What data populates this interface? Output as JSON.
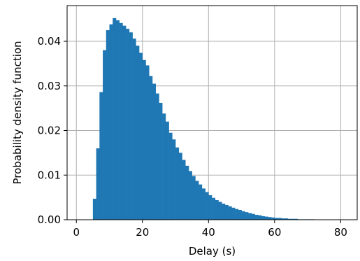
{
  "chart_data": {
    "type": "bar",
    "title": "",
    "xlabel": "Delay (s)",
    "ylabel": "Probability density function",
    "xlim": [
      -2.8,
      85
    ],
    "ylim": [
      0,
      0.048
    ],
    "x_ticks": [
      0,
      20,
      40,
      60,
      80
    ],
    "x_tick_labels": [
      "0",
      "20",
      "40",
      "60",
      "80"
    ],
    "y_ticks": [
      0.0,
      0.01,
      0.02,
      0.03,
      0.04
    ],
    "y_tick_labels": [
      "0.00",
      "0.01",
      "0.02",
      "0.03",
      "0.04"
    ],
    "grid": true,
    "bar_color": "#1f77b4",
    "bin_width": 1.0,
    "bin_starts": [
      5,
      6,
      7,
      8,
      9,
      10,
      11,
      12,
      13,
      14,
      15,
      16,
      17,
      18,
      19,
      20,
      21,
      22,
      23,
      24,
      25,
      26,
      27,
      28,
      29,
      30,
      31,
      32,
      33,
      34,
      35,
      36,
      37,
      38,
      39,
      40,
      41,
      42,
      43,
      44,
      45,
      46,
      47,
      48,
      49,
      50,
      51,
      52,
      53,
      54,
      55,
      56,
      57,
      58,
      59,
      60,
      61,
      62,
      63,
      64,
      65,
      66,
      67,
      68,
      69,
      70,
      71,
      72,
      73,
      74,
      75,
      76,
      77,
      78,
      79
    ],
    "values": [
      0.0047,
      0.016,
      0.0286,
      0.038,
      0.0425,
      0.0438,
      0.0452,
      0.0447,
      0.0441,
      0.0435,
      0.0428,
      0.042,
      0.0406,
      0.039,
      0.0374,
      0.0358,
      0.0346,
      0.0322,
      0.0305,
      0.0283,
      0.0262,
      0.0238,
      0.022,
      0.0195,
      0.018,
      0.0162,
      0.015,
      0.0134,
      0.0121,
      0.0109,
      0.0098,
      0.0087,
      0.0079,
      0.007,
      0.0062,
      0.0055,
      0.0049,
      0.0044,
      0.004,
      0.0036,
      0.0033,
      0.003,
      0.0027,
      0.0024,
      0.0022,
      0.0019,
      0.0017,
      0.0015,
      0.0013,
      0.0011,
      0.001,
      0.0008,
      0.0007,
      0.0006,
      0.0005,
      0.0004,
      0.0004,
      0.0003,
      0.0003,
      0.0002,
      0.0002,
      0.0002,
      0.0001,
      0.0001,
      0.0001,
      0.0001,
      0.0001,
      5e-05,
      5e-05,
      4e-05,
      3e-05,
      3e-05,
      2e-05,
      2e-05,
      1e-05
    ]
  }
}
